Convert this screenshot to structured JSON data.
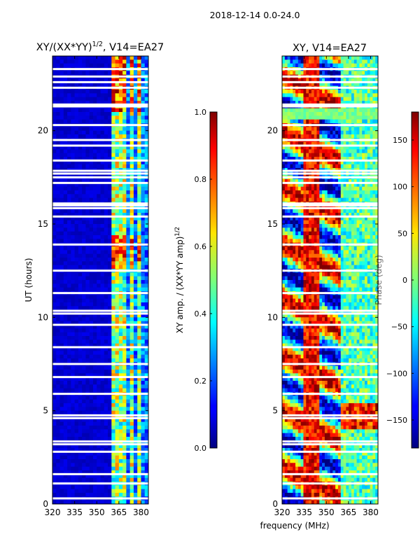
{
  "chart_data": [
    {
      "type": "heatmap",
      "suptitle": "2018-12-14 0.0-24.0",
      "title": "XY/(XX*YY)^1/2, V14=EA27",
      "title_main": "XY/(XX*YY)",
      "title_exp": "1/2",
      "title_tail": ", V14=EA27",
      "xlabel": "",
      "ylabel": "UT (hours)",
      "xlim": [
        320,
        385
      ],
      "ylim": [
        0,
        24
      ],
      "xticks": [
        "320",
        "335",
        "350",
        "365",
        "380"
      ],
      "xtick_values": [
        320,
        335,
        350,
        365,
        380
      ],
      "yticks": [
        "0",
        "5",
        "10",
        "15",
        "20"
      ],
      "ytick_values": [
        0,
        5,
        10,
        15,
        20
      ],
      "colorbar": {
        "label": "XY amp. / (XX*YY amp)^1/2",
        "label_main": "XY amp. / (XX*YY amp)",
        "label_exp": "1/2",
        "range": [
          0,
          1
        ],
        "ticks": [
          "0.0",
          "0.2",
          "0.4",
          "0.6",
          "0.8",
          "1.0"
        ],
        "tick_values": [
          0,
          0.2,
          0.4,
          0.6,
          0.8,
          1.0
        ]
      },
      "bright_columns_mhz": [
        361,
        362,
        364.5,
        365.5,
        368.5,
        369.5,
        373.5,
        374.5,
        378.5,
        379.5
      ],
      "gaps_ut": [
        0.3,
        1.1,
        1.6,
        2.8,
        3.2,
        3.35,
        4.6,
        4.75,
        5.9,
        6.8,
        7.5,
        8.4,
        9.6,
        10.2,
        10.35,
        11.3,
        12.5,
        13.9,
        15.4,
        15.85,
        16.0,
        16.1,
        17.2,
        17.5,
        17.7,
        17.85,
        18.4,
        19.2,
        19.5,
        20.3,
        21.3,
        21.4,
        22.3,
        22.6,
        22.9,
        23.3
      ]
    },
    {
      "type": "heatmap",
      "title": "XY, V14=EA27",
      "xlabel": "frequency (MHz)",
      "ylabel": "",
      "xlim": [
        320,
        385
      ],
      "ylim": [
        0,
        24
      ],
      "xticks": [
        "320",
        "335",
        "350",
        "365",
        "380"
      ],
      "xtick_values": [
        320,
        335,
        350,
        365,
        380
      ],
      "yticks": [
        "0",
        "5",
        "10",
        "15",
        "20"
      ],
      "ytick_values": [
        0,
        5,
        10,
        15,
        20
      ],
      "colorbar": {
        "label": "Phase (deg)",
        "range": [
          -180,
          180
        ],
        "ticks": [
          "−150",
          "−100",
          "−50",
          "0",
          "50",
          "100",
          "150"
        ],
        "tick_values": [
          -150,
          -100,
          -50,
          0,
          50,
          100,
          150
        ]
      },
      "gaps_ut": [
        0.3,
        1.1,
        1.6,
        2.8,
        3.2,
        3.35,
        4.6,
        4.75,
        5.9,
        6.8,
        7.5,
        8.4,
        9.6,
        10.2,
        10.35,
        11.3,
        12.5,
        13.9,
        15.4,
        15.85,
        16.0,
        16.1,
        17.2,
        17.5,
        17.7,
        17.85,
        18.4,
        19.2,
        19.5,
        20.3,
        21.3,
        21.4,
        22.3,
        22.6,
        22.9,
        23.3
      ]
    }
  ],
  "colors": {
    "jet_dark_blue": "#00007f",
    "jet_blue": "#0000ff",
    "jet_cyan": "#00ffff",
    "jet_yellow": "#ffff00",
    "jet_red": "#ff0000",
    "jet_dark_red": "#7f0000",
    "gap": "#ffffff"
  }
}
